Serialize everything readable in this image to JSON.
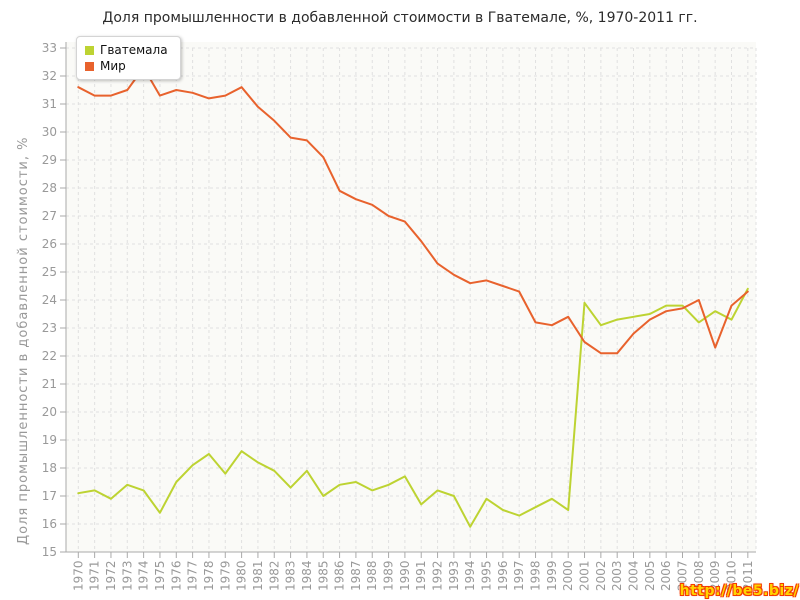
{
  "title": "Доля промышленности в добавленной стоимости в Гватемале, %, 1970-2011 гг.",
  "watermark": "http://be5.biz/",
  "colors": {
    "guatemala": "#bdd332",
    "world": "#e8622d",
    "axis": "#aaaaaa",
    "grid": "#e0e0e0",
    "tick_label": "#999999",
    "plot_bg": "#fafaf7"
  },
  "chart_data": {
    "type": "line",
    "title": "Доля промышленности в добавленной стоимости в Гватемале, %, 1970-2011 гг.",
    "xlabel": "",
    "ylabel": "Доля промышленности в добавленной стоимости, %",
    "ylim": [
      15,
      33
    ],
    "yticks": [
      15,
      16,
      17,
      18,
      19,
      20,
      21,
      22,
      23,
      24,
      25,
      26,
      27,
      28,
      29,
      30,
      31,
      32,
      33
    ],
    "grid": "dashed",
    "legend_position": "top-left",
    "x": [
      1970,
      1971,
      1972,
      1973,
      1974,
      1975,
      1976,
      1977,
      1978,
      1979,
      1980,
      1981,
      1982,
      1983,
      1984,
      1985,
      1986,
      1987,
      1988,
      1989,
      1990,
      1991,
      1992,
      1993,
      1994,
      1995,
      1996,
      1997,
      1998,
      1999,
      2000,
      2001,
      2002,
      2003,
      2004,
      2005,
      2006,
      2007,
      2008,
      2009,
      2010,
      2011
    ],
    "series": [
      {
        "name": "Гватемала",
        "color": "#bdd332",
        "values": [
          17.1,
          17.2,
          16.9,
          17.4,
          17.2,
          16.4,
          17.5,
          18.1,
          18.5,
          17.8,
          18.6,
          18.2,
          17.9,
          17.3,
          17.9,
          17.0,
          17.4,
          17.5,
          17.2,
          17.4,
          17.7,
          16.7,
          17.2,
          17.0,
          15.9,
          16.9,
          16.5,
          16.3,
          16.6,
          16.9,
          16.5,
          23.9,
          23.1,
          23.3,
          23.4,
          23.5,
          23.8,
          23.8,
          23.2,
          23.6,
          23.3,
          24.4
        ]
      },
      {
        "name": "Мир",
        "color": "#e8622d",
        "values": [
          31.6,
          31.3,
          31.3,
          31.5,
          32.3,
          31.3,
          31.5,
          31.4,
          31.2,
          31.3,
          31.6,
          30.9,
          30.4,
          29.8,
          29.7,
          29.1,
          27.9,
          27.6,
          27.4,
          27.0,
          26.8,
          26.1,
          25.3,
          24.9,
          24.6,
          24.7,
          24.5,
          24.3,
          23.2,
          23.1,
          23.4,
          22.5,
          22.1,
          22.1,
          22.8,
          23.3,
          23.6,
          23.7,
          24.0,
          22.3,
          23.8,
          24.3
        ]
      }
    ]
  }
}
